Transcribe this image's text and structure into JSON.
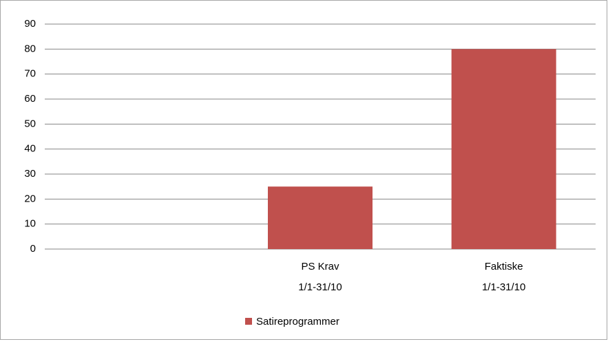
{
  "chart_data": {
    "type": "bar",
    "categories": [
      null,
      "PS Krav\n1/1-31/10",
      "Faktiske\n1/1-31/10"
    ],
    "series": [
      {
        "name": "Satireprogrammer",
        "color": "#c0504d",
        "values": [
          null,
          25,
          80
        ]
      }
    ],
    "ylim": [
      0,
      90
    ],
    "yticks": [
      0,
      10,
      20,
      30,
      40,
      50,
      60,
      70,
      80,
      90
    ],
    "grid": true,
    "legend": "bottom"
  }
}
